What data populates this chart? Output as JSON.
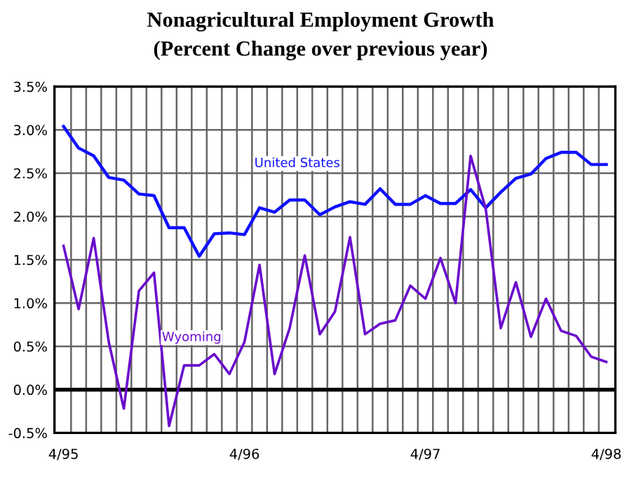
{
  "chart_data": {
    "type": "line",
    "title": "Nonagricultural Employment Growth",
    "subtitle": "(Percent Change over previous year)",
    "categories": [
      "4/95",
      null,
      null,
      null,
      null,
      null,
      null,
      null,
      null,
      null,
      null,
      null,
      "4/96",
      null,
      null,
      null,
      null,
      null,
      null,
      null,
      null,
      null,
      null,
      null,
      "4/97",
      null,
      null,
      null,
      null,
      null,
      null,
      null,
      null,
      null,
      null,
      null,
      "4/98"
    ],
    "series": [
      {
        "name": "United States",
        "color": "#1010ff",
        "values": [
          3.04,
          2.79,
          2.7,
          2.45,
          2.42,
          2.26,
          2.24,
          1.87,
          1.87,
          1.54,
          1.8,
          1.81,
          1.79,
          2.1,
          2.05,
          2.19,
          2.19,
          2.02,
          2.11,
          2.17,
          2.14,
          2.32,
          2.14,
          2.14,
          2.24,
          2.15,
          2.15,
          2.31,
          2.1,
          2.28,
          2.44,
          2.49,
          2.67,
          2.74,
          2.74,
          2.6,
          2.6
        ]
      },
      {
        "name": "Wyoming",
        "color": "#6a0ccc",
        "values": [
          1.66,
          0.93,
          1.75,
          0.55,
          -0.22,
          1.14,
          1.35,
          -0.42,
          0.28,
          0.28,
          0.41,
          0.18,
          0.55,
          1.44,
          0.18,
          0.71,
          1.55,
          0.64,
          0.9,
          1.76,
          0.64,
          0.76,
          0.8,
          1.2,
          1.05,
          1.52,
          1.0,
          2.7,
          2.09,
          0.71,
          1.24,
          0.61,
          1.05,
          0.68,
          0.62,
          0.38,
          0.32
        ]
      }
    ],
    "ylim": [
      -0.5,
      3.5
    ],
    "yticks": [
      {
        "value": -0.5,
        "label": "-0.5%"
      },
      {
        "value": 0,
        "label": "0.0%"
      },
      {
        "value": 0.5,
        "label": "0.5%"
      },
      {
        "value": 1,
        "label": "1.0%"
      },
      {
        "value": 1.5,
        "label": "1.5%"
      },
      {
        "value": 2,
        "label": "2.0%"
      },
      {
        "value": 2.5,
        "label": "2.5%"
      },
      {
        "value": 3,
        "label": "3.0%"
      },
      {
        "value": 3.5,
        "label": "3.5%"
      }
    ],
    "ref_lines": [
      {
        "axis": "y",
        "value": 0,
        "color": "#000000"
      }
    ],
    "grid": true,
    "marker": "none",
    "line_style": "solid"
  }
}
